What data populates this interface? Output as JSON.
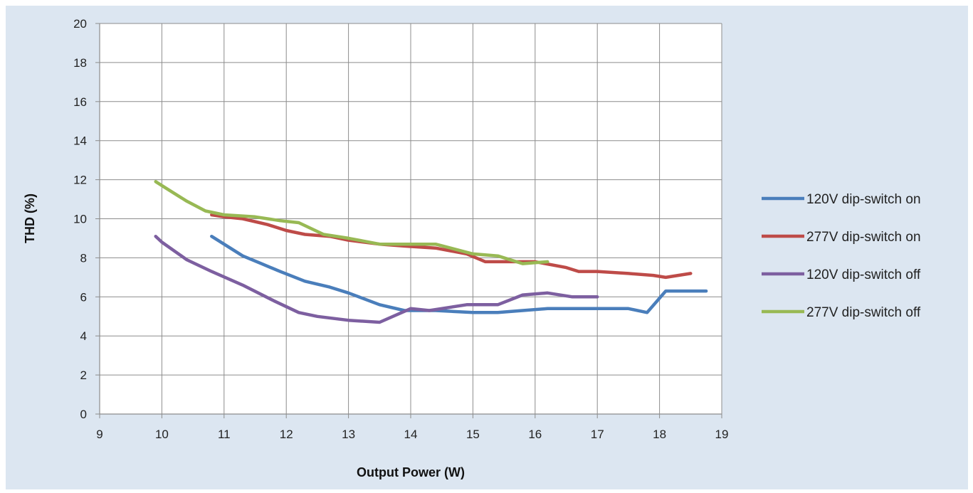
{
  "chart_data": {
    "type": "line",
    "title": "",
    "xlabel": "Output Power (W)",
    "ylabel": "THD (%)",
    "xlim": [
      9,
      19
    ],
    "ylim": [
      0,
      20
    ],
    "x_ticks": [
      "9",
      "10",
      "11",
      "12",
      "13",
      "14",
      "15",
      "16",
      "17",
      "18",
      "19"
    ],
    "y_ticks": [
      "0",
      "2",
      "4",
      "6",
      "8",
      "10",
      "12",
      "14",
      "16",
      "18",
      "20"
    ],
    "grid": true,
    "legend_position": "right",
    "series": [
      {
        "name": "120V dip-switch on",
        "color": "#4a7ebb",
        "x": [
          10.8,
          11.0,
          11.3,
          11.6,
          11.9,
          12.3,
          12.7,
          13.0,
          13.5,
          13.9,
          14.4,
          15.0,
          15.4,
          15.8,
          16.2,
          17.0,
          17.5,
          17.8,
          18.1,
          18.5,
          18.75
        ],
        "y": [
          9.1,
          8.7,
          8.1,
          7.7,
          7.3,
          6.8,
          6.5,
          6.2,
          5.6,
          5.3,
          5.3,
          5.2,
          5.2,
          5.3,
          5.4,
          5.4,
          5.4,
          5.2,
          6.3,
          6.3,
          6.3
        ]
      },
      {
        "name": "277V dip-switch on",
        "color": "#be4b48",
        "x": [
          10.8,
          11.0,
          11.3,
          11.7,
          12.0,
          12.3,
          12.7,
          13.0,
          13.5,
          13.9,
          14.4,
          14.9,
          15.2,
          15.6,
          16.0,
          16.5,
          16.7,
          17.0,
          17.5,
          17.9,
          18.1,
          18.5
        ],
        "y": [
          10.2,
          10.1,
          10.0,
          9.7,
          9.4,
          9.2,
          9.1,
          8.9,
          8.7,
          8.6,
          8.5,
          8.2,
          7.8,
          7.8,
          7.8,
          7.5,
          7.3,
          7.3,
          7.2,
          7.1,
          7.0,
          7.2
        ]
      },
      {
        "name": "120V dip-switch off",
        "color": "#7d5fa0",
        "x": [
          9.9,
          10.0,
          10.4,
          10.8,
          11.3,
          11.8,
          12.2,
          12.5,
          13.0,
          13.5,
          14.0,
          14.3,
          14.9,
          15.4,
          15.8,
          16.2,
          16.6,
          17.0
        ],
        "y": [
          9.1,
          8.8,
          7.9,
          7.3,
          6.6,
          5.8,
          5.2,
          5.0,
          4.8,
          4.7,
          5.4,
          5.3,
          5.6,
          5.6,
          6.1,
          6.2,
          6.0,
          6.0
        ]
      },
      {
        "name": "277V dip-switch off",
        "color": "#98b954",
        "x": [
          9.9,
          10.1,
          10.4,
          10.7,
          11.0,
          11.5,
          11.9,
          12.2,
          12.6,
          13.0,
          13.5,
          13.9,
          14.4,
          15.0,
          15.4,
          15.8,
          16.2
        ],
        "y": [
          11.9,
          11.5,
          10.9,
          10.4,
          10.2,
          10.1,
          9.9,
          9.8,
          9.2,
          9.0,
          8.7,
          8.7,
          8.7,
          8.2,
          8.1,
          7.7,
          7.8
        ]
      }
    ]
  }
}
